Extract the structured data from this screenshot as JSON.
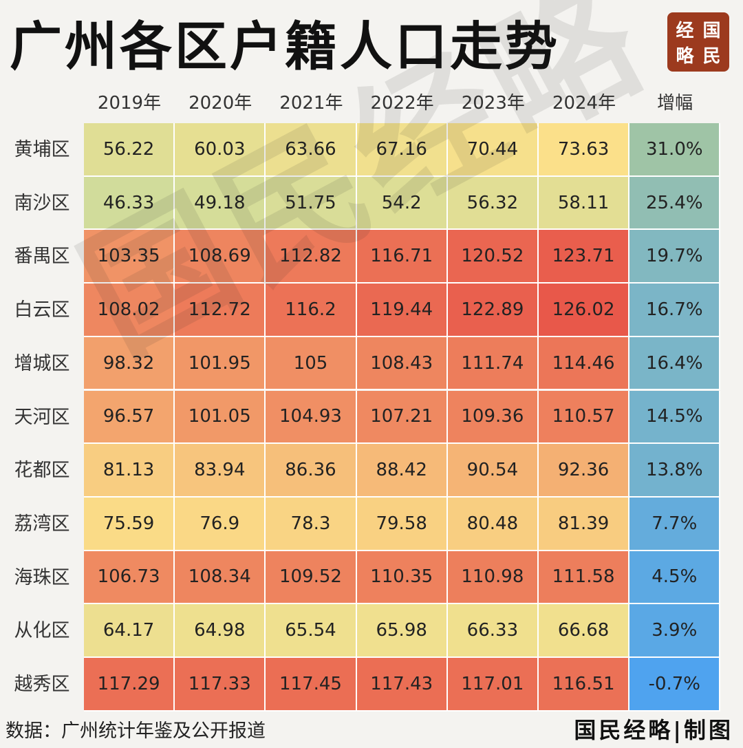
{
  "header": {
    "title": "广州各区户籍人口走势",
    "logo_chars": [
      "经",
      "国",
      "略",
      "民"
    ]
  },
  "watermark_text": "国民经略",
  "chart_data": {
    "type": "table",
    "columns": [
      "2019年",
      "2020年",
      "2021年",
      "2022年",
      "2023年",
      "2024年",
      "增幅"
    ],
    "rows": [
      {
        "district": "黄埔区",
        "values": [
          "56.22",
          "60.03",
          "63.66",
          "67.16",
          "70.44",
          "73.63"
        ],
        "growth": "31.0%"
      },
      {
        "district": "南沙区",
        "values": [
          "46.33",
          "49.18",
          "51.75",
          "54.2",
          "56.32",
          "58.11"
        ],
        "growth": "25.4%"
      },
      {
        "district": "番禺区",
        "values": [
          "103.35",
          "108.69",
          "112.82",
          "116.71",
          "120.52",
          "123.71"
        ],
        "growth": "19.7%"
      },
      {
        "district": "白云区",
        "values": [
          "108.02",
          "112.72",
          "116.2",
          "119.44",
          "122.89",
          "126.02"
        ],
        "growth": "16.7%"
      },
      {
        "district": "增城区",
        "values": [
          "98.32",
          "101.95",
          "105",
          "108.43",
          "111.74",
          "114.46"
        ],
        "growth": "16.4%"
      },
      {
        "district": "天河区",
        "values": [
          "96.57",
          "101.05",
          "104.93",
          "107.21",
          "109.36",
          "110.57"
        ],
        "growth": "14.5%"
      },
      {
        "district": "花都区",
        "values": [
          "81.13",
          "83.94",
          "86.36",
          "88.42",
          "90.54",
          "92.36"
        ],
        "growth": "13.8%"
      },
      {
        "district": "荔湾区",
        "values": [
          "75.59",
          "76.9",
          "78.3",
          "79.58",
          "80.48",
          "81.39"
        ],
        "growth": "7.7%"
      },
      {
        "district": "海珠区",
        "values": [
          "106.73",
          "108.34",
          "109.52",
          "110.35",
          "110.98",
          "111.58"
        ],
        "growth": "4.5%"
      },
      {
        "district": "从化区",
        "values": [
          "64.17",
          "64.98",
          "65.54",
          "65.98",
          "66.33",
          "66.68"
        ],
        "growth": "3.9%"
      },
      {
        "district": "越秀区",
        "values": [
          "117.29",
          "117.33",
          "117.45",
          "117.43",
          "117.01",
          "116.51"
        ],
        "growth": "-0.7%"
      }
    ],
    "value_colors": {
      "low": "#cfdc9c",
      "mid": "#fbe18a",
      "high": "#e8584a"
    },
    "growth_colors": {
      "high": "#9fc4a6",
      "low": "#4ea3f0"
    }
  },
  "footer": {
    "source": "数据：广州统计年鉴及公开报道",
    "credit": "国民经略|制图"
  }
}
